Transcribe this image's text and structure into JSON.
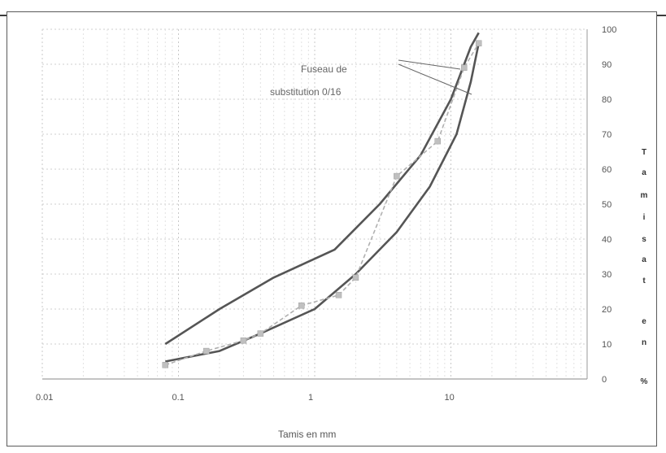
{
  "chart_data": {
    "type": "line",
    "title": "",
    "xlabel": "Tamis en mm",
    "ylabel_chars": [
      "T",
      "a",
      "m",
      "i",
      "s",
      "a",
      "t",
      "",
      "e",
      "n",
      "",
      "%"
    ],
    "x_scale": "log",
    "xlim": [
      0.01,
      100
    ],
    "ylim": [
      0,
      100
    ],
    "x_ticks": [
      {
        "value": 0.01,
        "label": "0.01"
      },
      {
        "value": 0.1,
        "label": "0.1"
      },
      {
        "value": 1,
        "label": "1"
      },
      {
        "value": 10,
        "label": "10"
      }
    ],
    "y_ticks": [
      0,
      10,
      20,
      30,
      40,
      50,
      60,
      70,
      80,
      90,
      100
    ],
    "grid": true,
    "annotation": {
      "line1": "Fuseau de",
      "line2": "substitution 0/16"
    },
    "series": [
      {
        "role": "upper-envelope",
        "color": "#555555",
        "x": [
          0.08,
          0.2,
          0.5,
          1.4,
          3,
          6,
          10,
          14,
          16
        ],
        "y": [
          10,
          20,
          29,
          37,
          50,
          64,
          80,
          95,
          99
        ]
      },
      {
        "role": "lower-envelope",
        "color": "#555555",
        "x": [
          0.08,
          0.2,
          0.4,
          1,
          2,
          4,
          7,
          11,
          14,
          16
        ],
        "y": [
          5,
          8,
          13,
          20,
          30,
          42,
          55,
          70,
          85,
          96
        ]
      },
      {
        "role": "sample-curve",
        "color": "#b0b0b0",
        "x": [
          0.08,
          0.16,
          0.3,
          0.4,
          0.8,
          1.5,
          2,
          4,
          8,
          12.5,
          16
        ],
        "y": [
          4,
          8,
          11,
          13,
          21,
          24,
          29,
          58,
          68,
          89,
          96
        ]
      }
    ]
  }
}
